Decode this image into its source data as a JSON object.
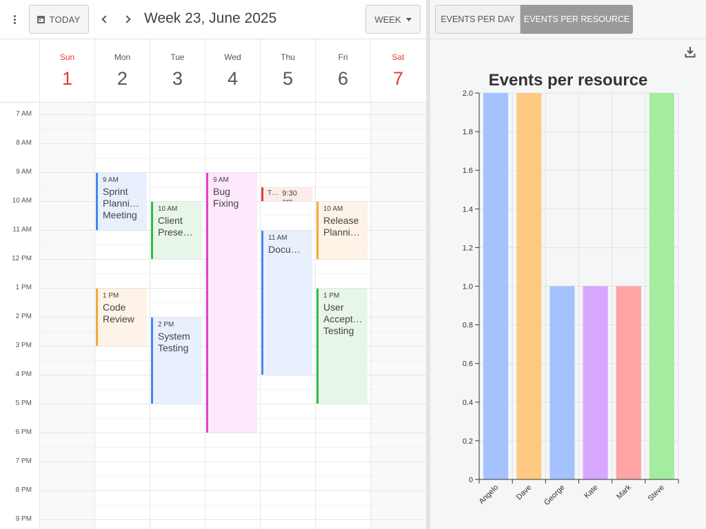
{
  "toolbar": {
    "today_label": "TODAY",
    "week_title": "Week 23, June 2025",
    "view_label": "WEEK"
  },
  "days": [
    {
      "name": "Sun",
      "num": "1",
      "weekend": true
    },
    {
      "name": "Mon",
      "num": "2",
      "weekend": false
    },
    {
      "name": "Tue",
      "num": "3",
      "weekend": false
    },
    {
      "name": "Wed",
      "num": "4",
      "weekend": false
    },
    {
      "name": "Thu",
      "num": "5",
      "weekend": false
    },
    {
      "name": "Fri",
      "num": "6",
      "weekend": false
    },
    {
      "name": "Sat",
      "num": "7",
      "weekend": true
    }
  ],
  "time_labels": [
    {
      "label": "7 AM",
      "hour": 7
    },
    {
      "label": "8 AM",
      "hour": 8
    },
    {
      "label": "9 AM",
      "hour": 9
    },
    {
      "label": "10 AM",
      "hour": 10
    },
    {
      "label": "11 AM",
      "hour": 11
    },
    {
      "label": "12 PM",
      "hour": 12
    },
    {
      "label": "1 PM",
      "hour": 13
    },
    {
      "label": "2 PM",
      "hour": 14
    },
    {
      "label": "3 PM",
      "hour": 15
    },
    {
      "label": "4 PM",
      "hour": 16
    },
    {
      "label": "5 PM",
      "hour": 17
    },
    {
      "label": "6 PM",
      "hour": 18
    },
    {
      "label": "7 PM",
      "hour": 19
    },
    {
      "label": "8 PM",
      "hour": 20
    },
    {
      "label": "9 PM",
      "hour": 21
    }
  ],
  "events": [
    {
      "day": 1,
      "start": 9,
      "end": 11,
      "time": "9 AM",
      "title_lines": [
        "Sprint",
        "Planni…",
        "Meeting"
      ],
      "color": "#4285f4",
      "bg": "#e8f0fe"
    },
    {
      "day": 1,
      "start": 13,
      "end": 15,
      "time": "1 PM",
      "title_lines": [
        "Code",
        "Review"
      ],
      "color": "#f4a836",
      "bg": "#fdf3e6"
    },
    {
      "day": 2,
      "start": 10,
      "end": 12,
      "time": "10 AM",
      "title_lines": [
        "Client",
        "Presen…"
      ],
      "color": "#33b843",
      "bg": "#e7f6e8"
    },
    {
      "day": 2,
      "start": 14,
      "end": 17,
      "time": "2 PM",
      "title_lines": [
        "System",
        "Testing"
      ],
      "color": "#4285f4",
      "bg": "#e8f0fe"
    },
    {
      "day": 3,
      "start": 9,
      "end": 18,
      "time": "9 AM",
      "title_lines": [
        "Bug",
        "Fixing"
      ],
      "color": "#e040d0",
      "bg": "#fde8fb"
    },
    {
      "day": 4,
      "start": 9.5,
      "end": 10,
      "time": "9:30 am",
      "title_lines": [
        "T…"
      ],
      "color": "#e53935",
      "bg": "#fdecea",
      "compact": true
    },
    {
      "day": 4,
      "start": 11,
      "end": 16,
      "time": "11 AM",
      "title_lines": [
        "Docum…"
      ],
      "color": "#4285f4",
      "bg": "#e8f0fe"
    },
    {
      "day": 5,
      "start": 10,
      "end": 12,
      "time": "10 AM",
      "title_lines": [
        "Release",
        "Planni…"
      ],
      "color": "#f4a836",
      "bg": "#fdf3e6"
    },
    {
      "day": 5,
      "start": 13,
      "end": 17,
      "time": "1 PM",
      "title_lines": [
        "User",
        "Accept…",
        "Testing"
      ],
      "color": "#33b843",
      "bg": "#e7f6e8"
    }
  ],
  "tabs": {
    "per_day": "EVENTS PER DAY",
    "per_resource": "EVENTS PER RESOURCE"
  },
  "icons": {
    "download": "download-icon",
    "menu": "more-vert-icon",
    "today": "calendar-icon"
  },
  "chart_data": {
    "type": "bar",
    "title": "Events per resource",
    "categories": [
      "Angelo",
      "Dave",
      "George",
      "Kate",
      "Mark",
      "Steve"
    ],
    "values": [
      2,
      2,
      1,
      1,
      1,
      2
    ],
    "colors": [
      "#a4c2fe",
      "#fec981",
      "#a4c2fe",
      "#d8a6fe",
      "#fea4a4",
      "#a4eca0"
    ],
    "ylim": [
      0,
      2
    ],
    "yticks": [
      "0",
      "0.2",
      "0.4",
      "0.6",
      "0.8",
      "1.0",
      "1.2",
      "1.4",
      "1.6",
      "1.8",
      "2.0"
    ],
    "grid": true,
    "xlabel": "",
    "ylabel": ""
  }
}
